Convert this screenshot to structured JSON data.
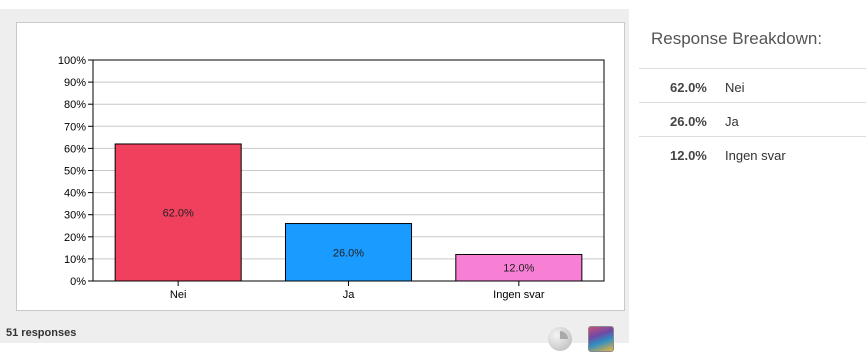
{
  "chart_data": {
    "type": "bar",
    "categories": [
      "Nei",
      "Ja",
      "Ingen svar"
    ],
    "values": [
      62.0,
      26.0,
      12.0
    ],
    "value_labels": [
      "62.0%",
      "26.0%",
      "12.0%"
    ],
    "colors": [
      "#f0405e",
      "#1a9bff",
      "#f77fd4"
    ],
    "y_ticks": [
      "0%",
      "10%",
      "20%",
      "30%",
      "40%",
      "50%",
      "60%",
      "70%",
      "80%",
      "90%",
      "100%"
    ],
    "ylim": [
      0,
      100
    ],
    "grid": true,
    "title": "",
    "xlabel": "",
    "ylabel": ""
  },
  "footer": {
    "response_count": "51 responses"
  },
  "controls": {
    "pie_icon": "pie-chart-icon",
    "color_icon": "color-palette-icon"
  },
  "breakdown": {
    "title": "Response Breakdown:",
    "items": [
      {
        "percent": "62.0%",
        "label": "Nei"
      },
      {
        "percent": "26.0%",
        "label": "Ja"
      },
      {
        "percent": "12.0%",
        "label": "Ingen svar"
      }
    ]
  }
}
